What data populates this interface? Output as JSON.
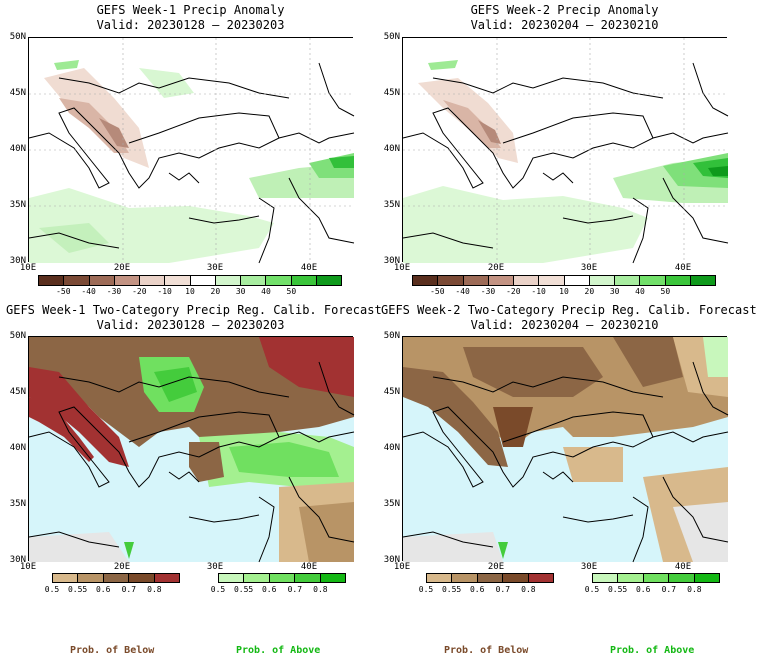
{
  "panels": {
    "tl": {
      "title": "GEFS Week-1 Precip Anomaly",
      "valid": "Valid: 20230128 – 20230203"
    },
    "tr": {
      "title": "GEFS Week-2 Precip Anomaly",
      "valid": "Valid: 20230204 – 20230210"
    },
    "bl": {
      "title": "GEFS Week-1 Two-Category Precip Reg. Calib. Forecast",
      "valid": "Valid: 20230128 – 20230203"
    },
    "br": {
      "title": "GEFS Week-2 Two-Category Precip Reg. Calib. Forecast",
      "valid": "Valid: 20230204 – 20230210"
    }
  },
  "axes": {
    "lat": [
      "50N",
      "45N",
      "40N",
      "35N",
      "30N"
    ],
    "lon": [
      "10E",
      "20E",
      "30E",
      "40E"
    ]
  },
  "anomaly_colorbar": {
    "labels": [
      "-50",
      "-40",
      "-30",
      "-20",
      "-10",
      "10",
      "20",
      "30",
      "40",
      "50"
    ],
    "colors": [
      "#5a2f1e",
      "#7b4a35",
      "#9d6b57",
      "#c39383",
      "#ead2c8",
      "#f1dfd6",
      "#ffffff",
      "#d2f5cc",
      "#a8eda0",
      "#72e06a",
      "#3bc53b",
      "#0f9a1c"
    ]
  },
  "prob_below_colorbar": {
    "labels": [
      "0.5",
      "0.55",
      "0.6",
      "0.7",
      "0.8"
    ],
    "colors": [
      "#d8b98c",
      "#b89466",
      "#8c6645",
      "#7a4a2a",
      "#a23232"
    ]
  },
  "prob_above_colorbar": {
    "labels": [
      "0.5",
      "0.55",
      "0.6",
      "0.7",
      "0.8"
    ],
    "colors": [
      "#c8f7bc",
      "#a4f090",
      "#70e060",
      "#44cc3c",
      "#14b814"
    ]
  },
  "legend": {
    "below": "Prob. of Below",
    "above": "Prob. of Above"
  },
  "colors": {
    "sea": "#d6f5fa",
    "no_data": "#e6e6e6",
    "below_text": "#7a4a2a",
    "above_text": "#14b814"
  }
}
